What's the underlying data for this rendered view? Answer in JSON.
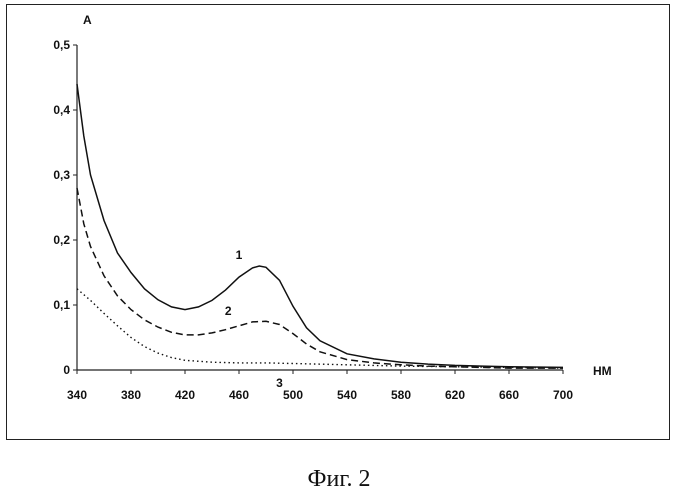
{
  "caption": "Фиг. 2",
  "chart_data": {
    "type": "line",
    "xlabel": "НМ",
    "ylabel": "А",
    "xlim": [
      340,
      700
    ],
    "ylim": [
      0,
      0.5
    ],
    "xticks": [
      340,
      380,
      420,
      460,
      500,
      540,
      580,
      620,
      660,
      700
    ],
    "xtick_labels": [
      "340",
      "380",
      "420",
      "460",
      "500",
      "540",
      "580",
      "620",
      "660",
      "700"
    ],
    "yticks": [
      0,
      0.1,
      0.2,
      0.3,
      0.4,
      0.5
    ],
    "ytick_labels": [
      "0",
      "0,1",
      "0,2",
      "0,3",
      "0,4",
      "0,5"
    ],
    "grid": false,
    "series": [
      {
        "name": "1",
        "style": "solid",
        "x": [
          340,
          345,
          350,
          360,
          370,
          380,
          390,
          400,
          410,
          420,
          430,
          440,
          450,
          460,
          470,
          475,
          480,
          490,
          500,
          510,
          520,
          540,
          560,
          580,
          600,
          620,
          640,
          660,
          700
        ],
        "y": [
          0.44,
          0.36,
          0.3,
          0.23,
          0.18,
          0.15,
          0.125,
          0.108,
          0.097,
          0.093,
          0.097,
          0.107,
          0.123,
          0.143,
          0.157,
          0.16,
          0.158,
          0.138,
          0.098,
          0.065,
          0.045,
          0.025,
          0.017,
          0.012,
          0.009,
          0.007,
          0.006,
          0.005,
          0.004
        ]
      },
      {
        "name": "2",
        "style": "dashed",
        "x": [
          340,
          345,
          350,
          360,
          370,
          380,
          390,
          400,
          410,
          420,
          430,
          440,
          450,
          460,
          470,
          480,
          490,
          500,
          510,
          520,
          540,
          560,
          580,
          600,
          620,
          640,
          660,
          700
        ],
        "y": [
          0.28,
          0.225,
          0.19,
          0.145,
          0.114,
          0.093,
          0.077,
          0.066,
          0.058,
          0.054,
          0.054,
          0.057,
          0.062,
          0.068,
          0.074,
          0.075,
          0.07,
          0.056,
          0.04,
          0.028,
          0.016,
          0.011,
          0.008,
          0.006,
          0.005,
          0.004,
          0.003,
          0.003
        ]
      },
      {
        "name": "3",
        "style": "dotted",
        "x": [
          340,
          350,
          360,
          370,
          380,
          390,
          400,
          410,
          420,
          440,
          460,
          480,
          500,
          540,
          580,
          620,
          660,
          700
        ],
        "y": [
          0.125,
          0.107,
          0.087,
          0.068,
          0.05,
          0.036,
          0.026,
          0.019,
          0.015,
          0.012,
          0.011,
          0.011,
          0.01,
          0.008,
          0.006,
          0.005,
          0.004,
          0.003
        ]
      }
    ],
    "colors": {
      "line": "#111111",
      "axis": "#222222"
    }
  }
}
